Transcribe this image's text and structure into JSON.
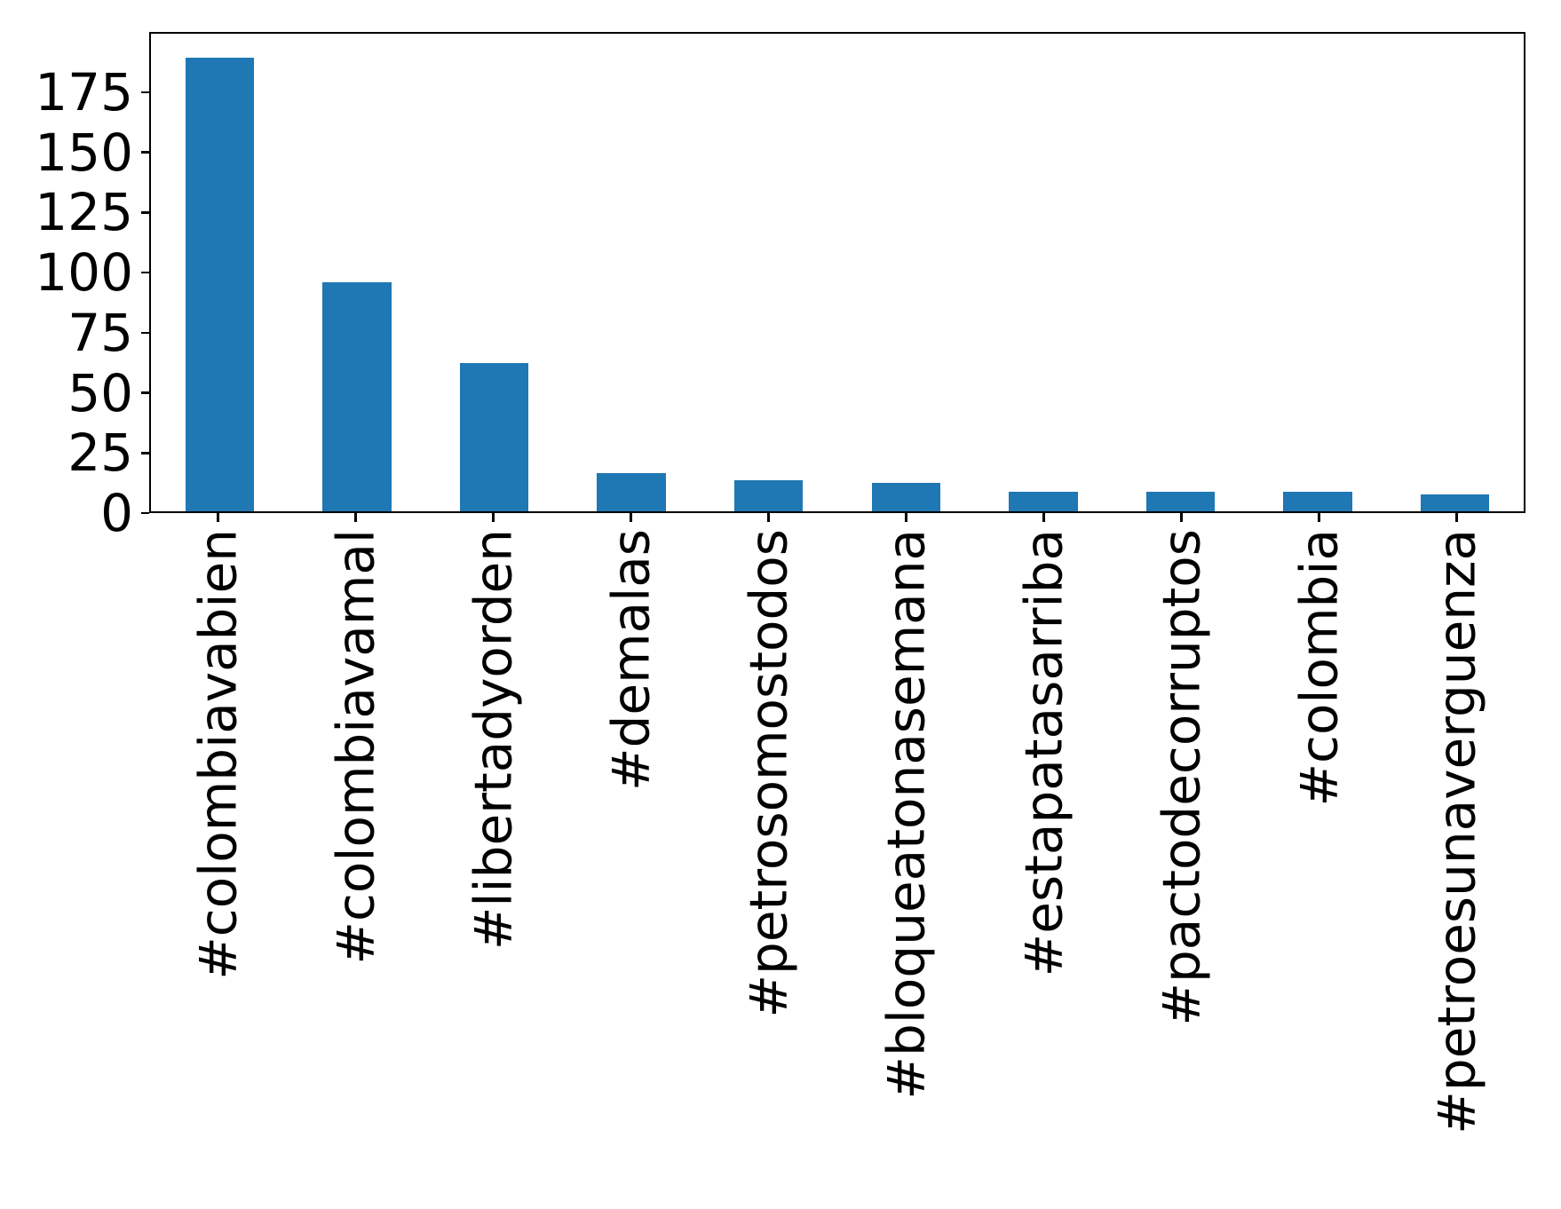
{
  "chart_data": {
    "type": "bar",
    "title": "",
    "xlabel": "",
    "ylabel": "",
    "categories": [
      "#colombiavabien",
      "#colombiavamal",
      "#libertadyorden",
      "#demalas",
      "#petrosomostodos",
      "#bloqueatonasemana",
      "#estapatasarriba",
      "#pactodecorruptos",
      "#colombia",
      "#petroesunaverguenza"
    ],
    "values": [
      190,
      96,
      62,
      16,
      13,
      12,
      8,
      8,
      8,
      7
    ],
    "yticks": [
      0,
      25,
      50,
      75,
      100,
      125,
      150,
      175
    ],
    "ylim": [
      0,
      200
    ],
    "bar_color": "#1f77b4",
    "axis_color": "#000000",
    "background_color": "#ffffff",
    "grid": "off",
    "legend": "none",
    "x_label_rotation_deg": 90,
    "bar_relative_width": 0.5
  }
}
